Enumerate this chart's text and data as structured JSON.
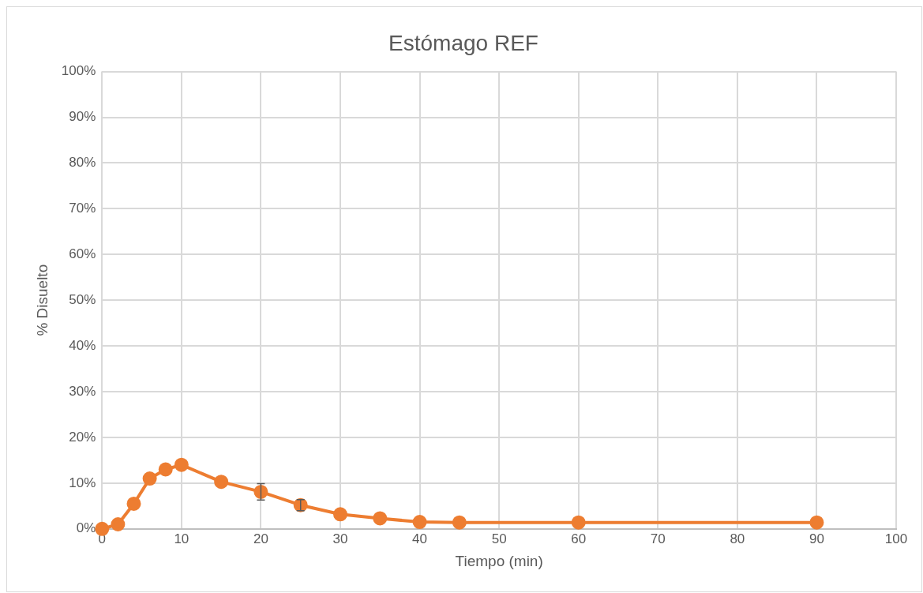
{
  "chart_data": {
    "type": "line",
    "title": "Estómago REF",
    "xlabel": "Tiempo (min)",
    "ylabel": "% Disuelto",
    "x": [
      0,
      2,
      4,
      6,
      8,
      10,
      15,
      20,
      25,
      30,
      35,
      40,
      45,
      60,
      90
    ],
    "series": [
      {
        "color": "#ed7d31",
        "values": [
          0,
          1,
          5.5,
          11,
          13,
          14,
          10.3,
          8.1,
          5.2,
          3.2,
          2.3,
          1.5,
          1.4,
          1.4,
          1.4
        ],
        "errors": [
          null,
          null,
          null,
          null,
          null,
          null,
          null,
          1.8,
          1.2,
          null,
          null,
          null,
          null,
          null,
          null
        ]
      }
    ],
    "xlim": [
      0,
      100
    ],
    "xticks": [
      0,
      10,
      20,
      30,
      40,
      50,
      60,
      70,
      80,
      90,
      100
    ],
    "ylim": [
      0,
      100
    ],
    "yticks": [
      {
        "value": 0,
        "label": "0%"
      },
      {
        "value": 10,
        "label": "10%"
      },
      {
        "value": 20,
        "label": "20%"
      },
      {
        "value": 30,
        "label": "30%"
      },
      {
        "value": 40,
        "label": "40%"
      },
      {
        "value": 50,
        "label": "50%"
      },
      {
        "value": 60,
        "label": "60%"
      },
      {
        "value": 70,
        "label": "70%"
      },
      {
        "value": 80,
        "label": "80%"
      },
      {
        "value": 90,
        "label": "90%"
      },
      {
        "value": 100,
        "label": "100%"
      }
    ],
    "grid": true,
    "legend": false,
    "marker": "circle",
    "line_style": "solid"
  }
}
